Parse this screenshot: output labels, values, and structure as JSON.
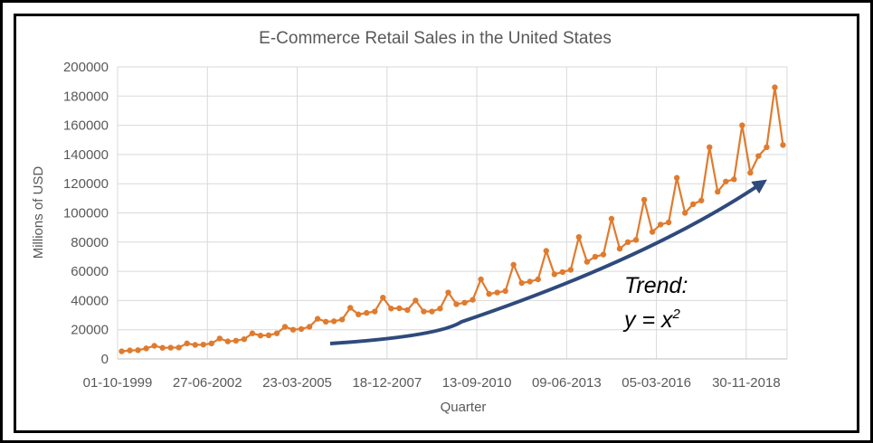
{
  "chart_data": {
    "type": "line",
    "title": "E-Commerce Retail Sales in the United States",
    "xlabel": "Quarter",
    "ylabel": "Millions of USD",
    "ylim": [
      0,
      200000
    ],
    "yticks": [
      "0",
      "20000",
      "40000",
      "60000",
      "80000",
      "100000",
      "120000",
      "140000",
      "160000",
      "180000",
      "200000"
    ],
    "xtick_labels": [
      "01-10-1999",
      "27-06-2002",
      "23-03-2005",
      "18-12-2007",
      "13-09-2010",
      "09-06-2013",
      "05-03-2016",
      "30-11-2018"
    ],
    "xtick_every": 11,
    "grid": "both",
    "series_color": "#E07B2E",
    "trend_color": "#2F4A7C",
    "annotation_line1": "Trend:",
    "annotation_line2": "y = x",
    "annotation_sup": "2",
    "series": [
      {
        "values": [
          5200,
          5800,
          6000,
          7200,
          9000,
          7600,
          7700,
          7800,
          10600,
          9600,
          9800,
          10600,
          14000,
          12000,
          12500,
          13500,
          17500,
          16000,
          16200,
          17500,
          22000,
          20000,
          20500,
          22000,
          27500,
          25500,
          25800,
          27000,
          35000,
          30500,
          31500,
          32500,
          42000,
          34500,
          34700,
          33500,
          40000,
          32500,
          32500,
          34500,
          45500,
          37500,
          38500,
          40500,
          54500,
          44500,
          45500,
          46500,
          64500,
          52000,
          53000,
          54500,
          74000,
          58000,
          59500,
          61000,
          83500,
          66500,
          70000,
          71500,
          96000,
          75500,
          80000,
          81500,
          109000,
          87000,
          92000,
          93500,
          124000,
          100000,
          106000,
          108500,
          145000,
          114500,
          121500,
          123000,
          160000,
          127500,
          139000,
          145000,
          186000,
          146500
        ]
      }
    ]
  }
}
